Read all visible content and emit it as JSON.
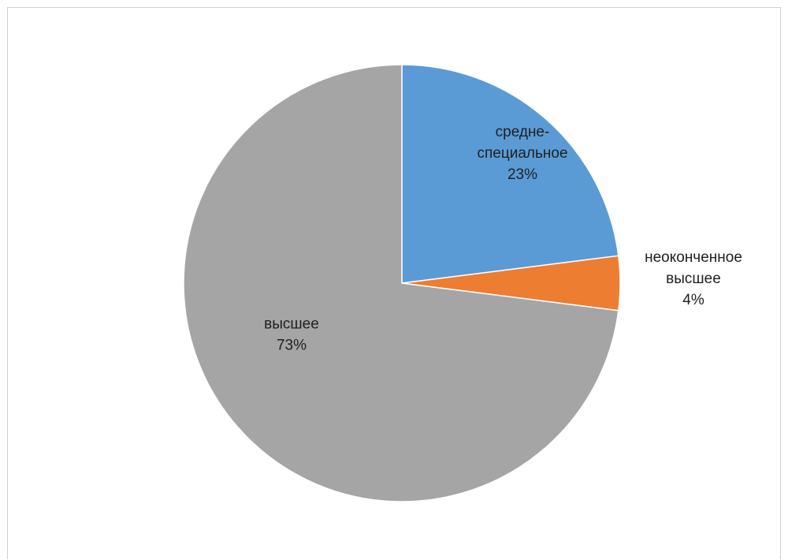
{
  "chart_data": {
    "type": "pie",
    "categories": [
      "средне-специальное",
      "неоконченное высшее",
      "высшее"
    ],
    "values": [
      23,
      4,
      73
    ],
    "labels": [
      {
        "lines": [
          "средне-",
          "специальное"
        ],
        "percent": "23%"
      },
      {
        "lines": [
          "неоконченное",
          "высшее"
        ],
        "percent": "4%"
      },
      {
        "lines": [
          "высшее"
        ],
        "percent": "73%"
      }
    ],
    "colors": [
      "#5b9bd5",
      "#ed7d31",
      "#a5a5a5"
    ],
    "start_angle": "top, clockwise"
  }
}
